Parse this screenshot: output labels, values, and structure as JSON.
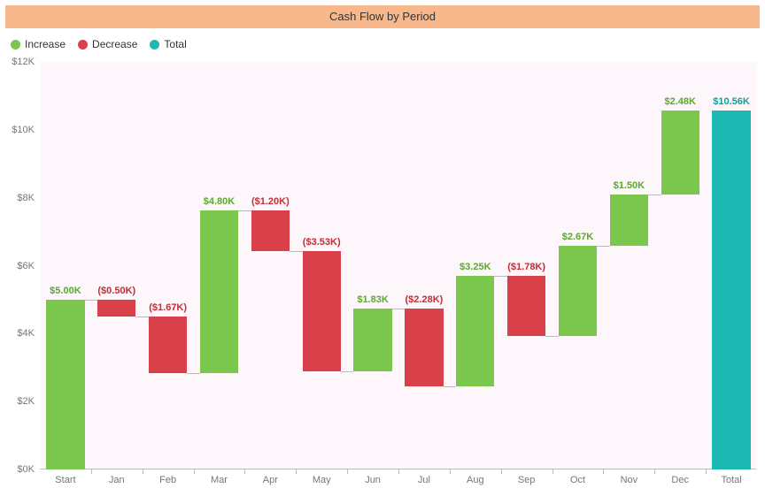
{
  "chart": {
    "type": "waterfall",
    "title": "Cash Flow by Period",
    "title_bg": "#f8b88b",
    "title_color": "#333333",
    "title_fontsize": 13,
    "plot_bg": "#fdf6fa",
    "legend": [
      {
        "label": "Increase",
        "color": "#7bc74d"
      },
      {
        "label": "Decrease",
        "color": "#d9414a"
      },
      {
        "label": "Total",
        "color": "#1fb9b3"
      }
    ],
    "axis_label_color": "#777777",
    "axis_fontsize": 11,
    "y": {
      "min": 0,
      "max": 12,
      "tick_step": 2,
      "tick_labels": [
        "$0K",
        "$2K",
        "$4K",
        "$6K",
        "$8K",
        "$10K",
        "$12K"
      ]
    },
    "bar_width_ratio": 0.75,
    "connector_color": "#bbbbbb",
    "categories": [
      "Start",
      "Jan",
      "Feb",
      "Mar",
      "Apr",
      "May",
      "Jun",
      "Jul",
      "Aug",
      "Sep",
      "Oct",
      "Nov",
      "Dec",
      "Total"
    ],
    "items": [
      {
        "cat": "Start",
        "kind": "increase",
        "delta": 5.0,
        "label": "$5.00K"
      },
      {
        "cat": "Jan",
        "kind": "decrease",
        "delta": -0.5,
        "label": "($0.50K)"
      },
      {
        "cat": "Feb",
        "kind": "decrease",
        "delta": -1.67,
        "label": "($1.67K)"
      },
      {
        "cat": "Mar",
        "kind": "increase",
        "delta": 4.8,
        "label": "$4.80K"
      },
      {
        "cat": "Apr",
        "kind": "decrease",
        "delta": -1.2,
        "label": "($1.20K)"
      },
      {
        "cat": "May",
        "kind": "decrease",
        "delta": -3.53,
        "label": "($3.53K)"
      },
      {
        "cat": "Jun",
        "kind": "increase",
        "delta": 1.83,
        "label": "$1.83K"
      },
      {
        "cat": "Jul",
        "kind": "decrease",
        "delta": -2.28,
        "label": "($2.28K)"
      },
      {
        "cat": "Aug",
        "kind": "increase",
        "delta": 3.25,
        "label": "$3.25K"
      },
      {
        "cat": "Sep",
        "kind": "decrease",
        "delta": -1.78,
        "label": "($1.78K)"
      },
      {
        "cat": "Oct",
        "kind": "increase",
        "delta": 2.67,
        "label": "$2.67K"
      },
      {
        "cat": "Nov",
        "kind": "increase",
        "delta": 1.5,
        "label": "$1.50K"
      },
      {
        "cat": "Dec",
        "kind": "increase",
        "delta": 2.48,
        "label": "$2.48K"
      },
      {
        "cat": "Total",
        "kind": "total",
        "value": 10.56,
        "label": "$10.56K"
      }
    ],
    "colors": {
      "increase": "#7bc74d",
      "decrease": "#d9414a",
      "total": "#1fb9b3"
    },
    "label_colors": {
      "increase": "#5aa82f",
      "decrease": "#c22e36",
      "total": "#169e99"
    }
  }
}
